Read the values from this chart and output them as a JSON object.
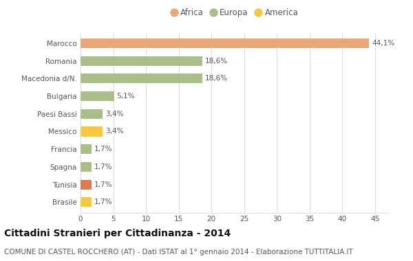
{
  "categories": [
    "Brasile",
    "Tunisia",
    "Spagna",
    "Francia",
    "Messico",
    "Paesi Bassi",
    "Bulgaria",
    "Macedonia d/N.",
    "Romania",
    "Marocco"
  ],
  "values": [
    1.7,
    1.7,
    1.7,
    1.7,
    3.4,
    3.4,
    5.1,
    18.6,
    18.6,
    44.1
  ],
  "colors": [
    "#f5c842",
    "#e07b50",
    "#a8bf8a",
    "#a8bf8a",
    "#f5c842",
    "#a8bf8a",
    "#a8bf8a",
    "#a8bf8a",
    "#a8bf8a",
    "#e8a87c"
  ],
  "labels": [
    "1,7%",
    "1,7%",
    "1,7%",
    "1,7%",
    "3,4%",
    "3,4%",
    "5,1%",
    "18,6%",
    "18,6%",
    "44,1%"
  ],
  "legend": [
    {
      "label": "Africa",
      "color": "#e8a87c"
    },
    {
      "label": "Europa",
      "color": "#a8bf8a"
    },
    {
      "label": "America",
      "color": "#f5c842"
    }
  ],
  "title": "Cittadini Stranieri per Cittadinanza - 2014",
  "subtitle": "COMUNE DI CASTEL ROCCHERO (AT) - Dati ISTAT al 1° gennaio 2014 - Elaborazione TUTTITALIA.IT",
  "xlim": [
    0,
    47
  ],
  "xticks": [
    0,
    5,
    10,
    15,
    20,
    25,
    30,
    35,
    40,
    45
  ],
  "bg_color": "#ffffff",
  "bar_height": 0.55,
  "title_fontsize": 10,
  "subtitle_fontsize": 7.5,
  "label_fontsize": 7.5,
  "tick_fontsize": 7.5,
  "legend_fontsize": 8.5
}
